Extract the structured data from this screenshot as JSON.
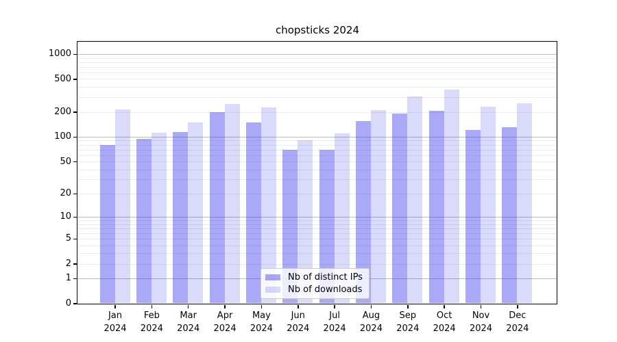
{
  "figure": {
    "title": "chopsticks 2024"
  },
  "chart_data": {
    "type": "bar",
    "title": "chopsticks 2024",
    "xlabel": "",
    "ylabel": "",
    "categories": [
      "Jan 2024",
      "Feb 2024",
      "Mar 2024",
      "Apr 2024",
      "May 2024",
      "Jun 2024",
      "Jul 2024",
      "Aug 2024",
      "Sep 2024",
      "Oct 2024",
      "Nov 2024",
      "Dec 2024"
    ],
    "series": [
      {
        "name": "Nb of distinct IPs",
        "slug": "distinct-ips",
        "color": "rgba(50,50,235,0.42)",
        "values": [
          80,
          95,
          115,
          198,
          150,
          69,
          70,
          155,
          192,
          205,
          122,
          130
        ]
      },
      {
        "name": "Nb of downloads",
        "slug": "downloads",
        "color": "rgba(50,50,235,0.18)",
        "values": [
          215,
          113,
          150,
          250,
          228,
          90,
          110,
          210,
          310,
          375,
          232,
          255
        ]
      }
    ],
    "yscale": "log1p",
    "ylim": [
      0,
      1450
    ],
    "yticks": [
      {
        "value": 0,
        "label": "0"
      },
      {
        "value": 1,
        "label": "1"
      },
      {
        "value": 2,
        "label": "2"
      },
      {
        "value": 5,
        "label": "5"
      },
      {
        "value": 10,
        "label": "10"
      },
      {
        "value": 20,
        "label": "20"
      },
      {
        "value": 50,
        "label": "50"
      },
      {
        "value": 100,
        "label": "100"
      },
      {
        "value": 200,
        "label": "200"
      },
      {
        "value": 500,
        "label": "500"
      },
      {
        "value": 1000,
        "label": "1000"
      }
    ],
    "grid": {
      "enabled": true,
      "major_values": [
        1,
        10,
        100,
        1000
      ],
      "minor_values": [
        2,
        3,
        4,
        5,
        6,
        7,
        8,
        9,
        20,
        30,
        40,
        50,
        60,
        70,
        80,
        90,
        200,
        300,
        400,
        500,
        600,
        700,
        800,
        900
      ]
    },
    "legend_position": "lower center",
    "colors": {
      "bar_distinct_ips": "rgba(50,50,235,0.42)",
      "bar_downloads": "rgba(50,50,235,0.18)",
      "major_grid": "#bababa",
      "minor_grid": "#e9e9e9",
      "spine": "#000000",
      "text": "#000000",
      "legend_border": "#cccccc"
    }
  }
}
